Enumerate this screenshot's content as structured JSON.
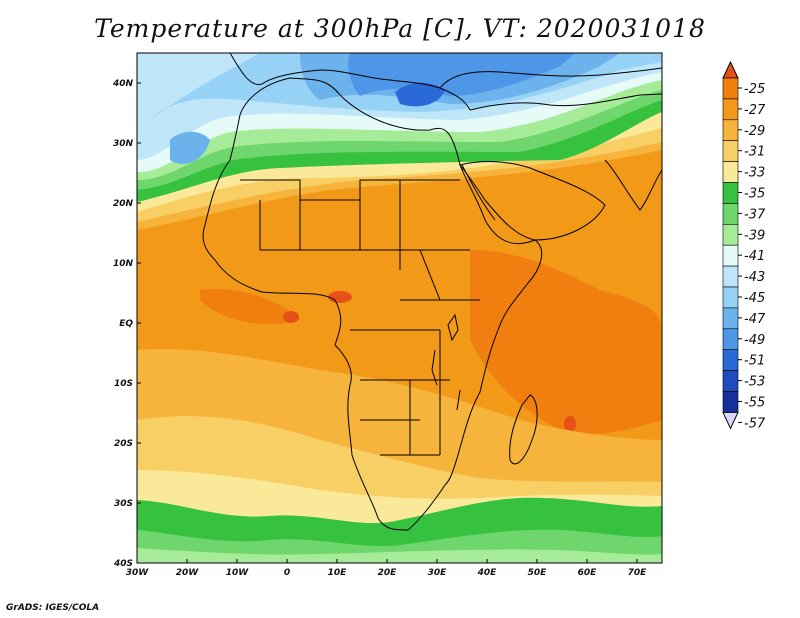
{
  "title": "Temperature at 300hPa [C], VT: 2020031018",
  "credit": "GrADS: IGES/COLA",
  "map": {
    "projection": "lat-lon",
    "lon_range": [
      -30,
      75
    ],
    "lat_range": [
      -40,
      45
    ],
    "x_ticks": [
      "30W",
      "20W",
      "10W",
      "0",
      "10E",
      "20E",
      "30E",
      "40E",
      "50E",
      "60E",
      "70E"
    ],
    "y_ticks": [
      "40N",
      "30N",
      "20N",
      "10N",
      "EQ",
      "10S",
      "20S",
      "30S",
      "40S"
    ],
    "field": "temperature at 300hPa",
    "units": "C"
  },
  "colorbar": {
    "labels": [
      "-25",
      "-27",
      "-29",
      "-31",
      "-33",
      "-35",
      "-37",
      "-39",
      "-41",
      "-43",
      "-45",
      "-47",
      "-49",
      "-51",
      "-53",
      "-55",
      "-57"
    ],
    "colors": [
      "#e8501a",
      "#f07f10",
      "#f29a18",
      "#f6b43c",
      "#f8cf64",
      "#fae998",
      "#36c23e",
      "#6ed66c",
      "#a6ec98",
      "#e6faf8",
      "#bfe6f8",
      "#96d2f6",
      "#6cb2ec",
      "#4e96e8",
      "#2a6ad6",
      "#1e4cbe",
      "#14309c",
      "#06106a"
    ]
  }
}
